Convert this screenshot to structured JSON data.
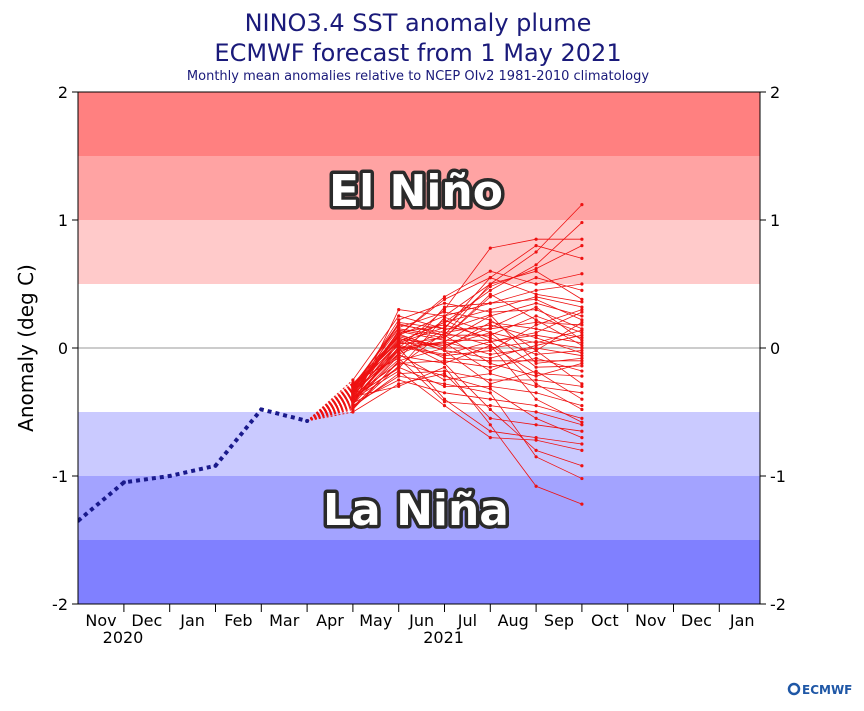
{
  "title_line1": "NINO3.4 SST anomaly plume",
  "title_line2": "ECMWF forecast from 1 May 2021",
  "subtitle": "Monthly mean anomalies relative to NCEP OIv2 1981-2010 climatology",
  "ylabel": "Anomaly (deg C)",
  "el_nino_label": "El Niño",
  "la_nina_label": "La Niña",
  "logo": "ECMWF",
  "colors": {
    "observed": "#1a1a8c",
    "forecast": "#ee1111"
  },
  "chart_data": {
    "type": "line",
    "ylim": [
      -2,
      2
    ],
    "y_ticks": [
      "2",
      "1",
      "0",
      "-1",
      "-2"
    ],
    "x_months": [
      "Nov",
      "Dec",
      "Jan",
      "Feb",
      "Mar",
      "Apr",
      "May",
      "Jun",
      "Jul",
      "Aug",
      "Sep",
      "Oct",
      "Nov",
      "Dec",
      "Jan"
    ],
    "x_years": [
      {
        "label": "2020",
        "month_index": 0
      },
      {
        "label": "2021",
        "month_index": 7
      }
    ],
    "bands": [
      {
        "from": 1.5,
        "to": 2.0,
        "color": "#ff8080"
      },
      {
        "from": 1.0,
        "to": 1.5,
        "color": "#ffa3a3"
      },
      {
        "from": 0.5,
        "to": 1.0,
        "color": "#ffcaca"
      },
      {
        "from": -0.5,
        "to": 0.5,
        "color": "#ffffff"
      },
      {
        "from": -1.0,
        "to": -0.5,
        "color": "#cacaff"
      },
      {
        "from": -1.5,
        "to": -1.0,
        "color": "#a3a3ff"
      },
      {
        "from": -2.0,
        "to": -1.5,
        "color": "#8080ff"
      }
    ],
    "observed": {
      "x": [
        -0.5,
        0.5,
        1.5,
        2.5,
        3.5,
        4.5
      ],
      "y": [
        -1.35,
        -1.05,
        -1.0,
        -0.92,
        -0.48,
        -0.57
      ]
    },
    "forecast_start": {
      "x": 4.5,
      "y": -0.57
    },
    "forecast_x": [
      5.5,
      6.5,
      7.5,
      8.5,
      9.5,
      10.5
    ],
    "forecast_members": [
      [
        -0.35,
        0.1,
        0.25,
        0.5,
        0.75,
        1.12
      ],
      [
        -0.3,
        0.05,
        0.2,
        0.45,
        0.65,
        0.98
      ],
      [
        -0.35,
        0.0,
        0.3,
        0.78,
        0.85,
        0.85
      ],
      [
        -0.4,
        0.2,
        0.15,
        0.55,
        0.8,
        0.7
      ],
      [
        -0.28,
        0.1,
        0.4,
        0.6,
        0.5,
        0.58
      ],
      [
        -0.45,
        0.3,
        0.25,
        0.35,
        0.45,
        0.5
      ],
      [
        -0.32,
        0.15,
        0.1,
        0.5,
        0.6,
        0.38
      ],
      [
        -0.38,
        0.05,
        0.2,
        0.3,
        0.4,
        0.32
      ],
      [
        -0.4,
        0.0,
        0.05,
        0.25,
        0.35,
        0.25
      ],
      [
        -0.25,
        0.25,
        0.15,
        0.15,
        0.2,
        0.18
      ],
      [
        -0.42,
        -0.05,
        0.1,
        0.1,
        0.25,
        0.12
      ],
      [
        -0.36,
        0.1,
        0.0,
        0.2,
        0.15,
        0.08
      ],
      [
        -0.3,
        0.02,
        -0.05,
        0.05,
        0.1,
        0.04
      ],
      [
        -0.48,
        -0.1,
        0.0,
        0.0,
        0.05,
        0.0
      ],
      [
        -0.33,
        0.12,
        0.18,
        0.08,
        -0.05,
        -0.02
      ],
      [
        -0.41,
        -0.02,
        0.05,
        -0.05,
        0.0,
        -0.06
      ],
      [
        -0.29,
        0.08,
        -0.08,
        -0.1,
        -0.1,
        -0.1
      ],
      [
        -0.44,
        0.04,
        0.02,
        0.12,
        -0.15,
        -0.14
      ],
      [
        -0.37,
        -0.12,
        -0.1,
        -0.15,
        -0.08,
        -0.18
      ],
      [
        -0.31,
        0.18,
        0.12,
        0.02,
        -0.2,
        -0.22
      ],
      [
        -0.46,
        -0.2,
        -0.18,
        -0.25,
        -0.25,
        -0.3
      ],
      [
        -0.34,
        -0.05,
        -0.25,
        -0.2,
        -0.3,
        -0.35
      ],
      [
        -0.39,
        -0.15,
        -0.3,
        -0.3,
        -0.35,
        -0.45
      ],
      [
        -0.43,
        -0.25,
        -0.35,
        -0.4,
        -0.45,
        -0.55
      ],
      [
        -0.27,
        -0.08,
        -0.42,
        -0.45,
        -0.5,
        -0.6
      ],
      [
        -0.5,
        -0.28,
        -0.2,
        -0.55,
        -0.6,
        -0.65
      ],
      [
        -0.35,
        0.0,
        -0.4,
        -0.65,
        -0.7,
        -0.75
      ],
      [
        -0.4,
        -0.18,
        -0.45,
        -0.7,
        -0.72,
        -0.8
      ],
      [
        -0.3,
        0.06,
        -0.12,
        -0.48,
        -0.8,
        -0.92
      ],
      [
        -0.45,
        -0.22,
        -0.28,
        -0.35,
        -0.85,
        -1.02
      ],
      [
        -0.38,
        -0.3,
        -0.15,
        -0.6,
        -1.08,
        -1.22
      ],
      [
        -0.33,
        0.22,
        0.35,
        0.28,
        0.3,
        0.15
      ],
      [
        -0.42,
        0.14,
        0.08,
        0.4,
        0.55,
        0.45
      ],
      [
        -0.36,
        -0.02,
        0.22,
        0.05,
        0.12,
        0.28
      ],
      [
        -0.31,
        0.09,
        -0.02,
        -0.08,
        0.02,
        0.1
      ],
      [
        -0.47,
        -0.14,
        0.12,
        0.18,
        0.08,
        -0.04
      ],
      [
        -0.29,
        0.16,
        0.28,
        0.22,
        -0.02,
        -0.28
      ],
      [
        -0.44,
        -0.06,
        -0.12,
        0.02,
        -0.4,
        -0.58
      ],
      [
        -0.37,
        0.03,
        0.08,
        0.42,
        0.22,
        0.02
      ],
      [
        -0.34,
        0.11,
        -0.02,
        -0.28,
        -0.18,
        -0.4
      ],
      [
        -0.41,
        -0.09,
        0.32,
        0.35,
        0.38,
        0.22
      ],
      [
        -0.32,
        0.07,
        0.02,
        0.16,
        0.32,
        0.06
      ],
      [
        -0.39,
        -0.04,
        0.14,
        0.26,
        -0.12,
        -0.08
      ],
      [
        -0.43,
        0.01,
        -0.06,
        -0.02,
        0.18,
        0.3
      ],
      [
        -0.35,
        0.13,
        0.06,
        0.06,
        -0.28,
        -0.48
      ],
      [
        -0.38,
        -0.16,
        0.24,
        0.12,
        0.04,
        0.14
      ],
      [
        -0.3,
        0.19,
        0.1,
        -0.12,
        -0.22,
        -0.12
      ],
      [
        -0.46,
        -0.11,
        -0.22,
        -0.32,
        -0.55,
        -0.7
      ],
      [
        -0.33,
        0.04,
        0.16,
        0.48,
        0.62,
        0.8
      ],
      [
        -0.4,
        -0.01,
        0.04,
        -0.18,
        -0.02,
        0.2
      ],
      [
        -0.36,
        0.1,
        0.38,
        0.55,
        0.42,
        0.36
      ]
    ]
  }
}
